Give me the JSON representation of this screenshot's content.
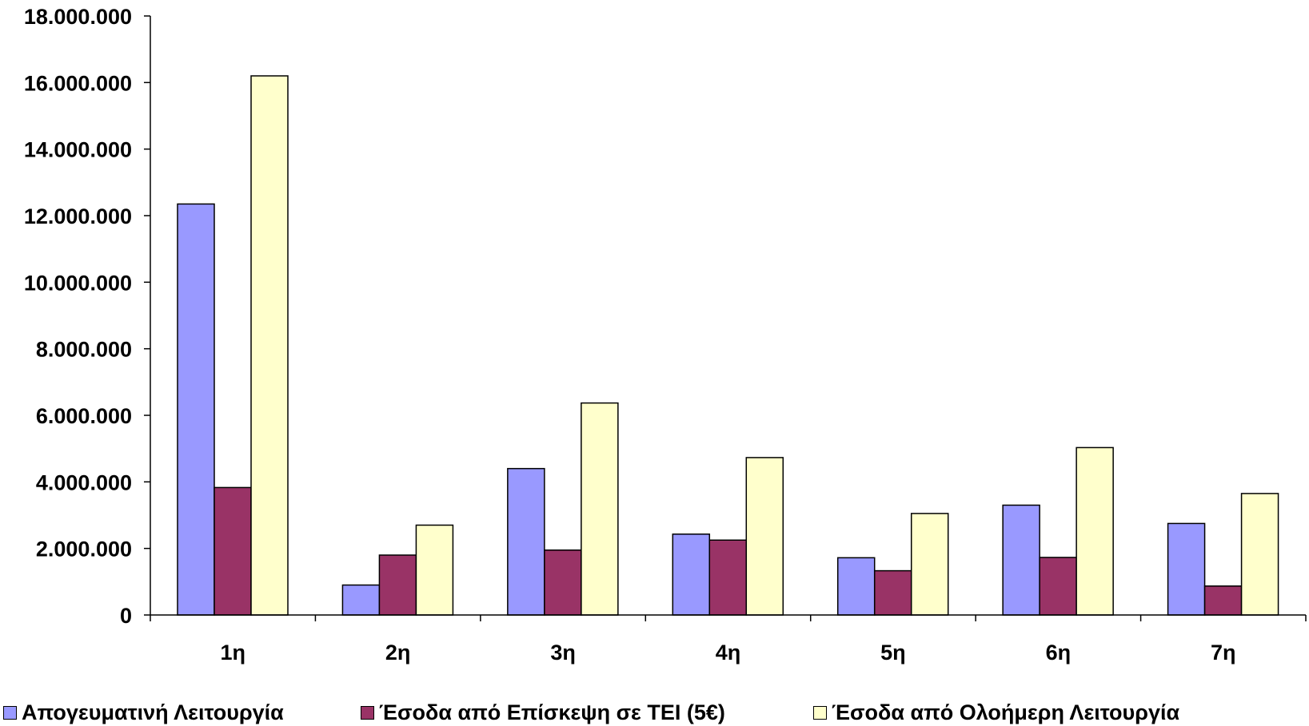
{
  "chart_data": {
    "type": "bar",
    "categories": [
      "1η",
      "2η",
      "3η",
      "4η",
      "5η",
      "6η",
      "7η"
    ],
    "series": [
      {
        "name": "Απογευματινή Λειτουργία",
        "color": "#9999FF",
        "values": [
          12350000,
          900000,
          4400000,
          2430000,
          1720000,
          3300000,
          2750000
        ]
      },
      {
        "name": "Έσοδα από Επίσκεψη σε ΤΕΙ (5€)",
        "color": "#993366",
        "values": [
          3830000,
          1800000,
          1950000,
          2250000,
          1330000,
          1730000,
          870000
        ]
      },
      {
        "name": "Έσοδα από Ολοήμερη Λειτουργία",
        "color": "#FFFFCC",
        "values": [
          16200000,
          2700000,
          6370000,
          4730000,
          3050000,
          5030000,
          3650000
        ]
      }
    ],
    "ylim": [
      0,
      18000000
    ],
    "yticks": [
      0,
      2000000,
      4000000,
      6000000,
      8000000,
      10000000,
      12000000,
      14000000,
      16000000,
      18000000
    ],
    "ytick_labels": [
      "0",
      "2.000.000",
      "4.000.000",
      "6.000.000",
      "8.000.000",
      "10.000.000",
      "12.000.000",
      "14.000.000",
      "16.000.000",
      "18.000.000"
    ],
    "title": "",
    "xlabel": "",
    "ylabel": "",
    "grid": false,
    "legend_position": "bottom"
  }
}
